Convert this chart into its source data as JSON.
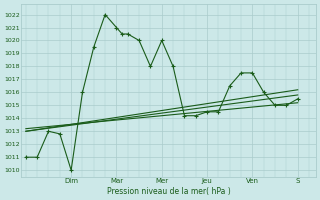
{
  "bg_color": "#cce8e8",
  "grid_color": "#aacccc",
  "line_color": "#1a5c1a",
  "title": "Pression niveau de la mer( hPa )",
  "ylabel_values": [
    1010,
    1011,
    1012,
    1013,
    1014,
    1015,
    1016,
    1017,
    1018,
    1019,
    1020,
    1021,
    1022
  ],
  "ylim": [
    1009.5,
    1022.8
  ],
  "day_labels": [
    "Dim",
    "Mar",
    "Mer",
    "Jeu",
    "Ven",
    "S"
  ],
  "day_positions": [
    2,
    4,
    6,
    8,
    10,
    12
  ],
  "series1_x": [
    0,
    0.5,
    1,
    1.5,
    2,
    2.5,
    3,
    3.5,
    4,
    4.25,
    4.5,
    5,
    5.5,
    6,
    6.5,
    7,
    7.5,
    8,
    8.5,
    9,
    9.5,
    10,
    10.5,
    11,
    11.5,
    12
  ],
  "series1_y": [
    1011,
    1011,
    1013,
    1012.8,
    1010,
    1016,
    1019.5,
    1022,
    1021,
    1020.5,
    1020.5,
    1020,
    1018,
    1020,
    1018,
    1014.2,
    1014.2,
    1014.5,
    1014.5,
    1016.5,
    1017.5,
    1017.5,
    1016,
    1015,
    1015,
    1015.5
  ],
  "trend1_x": [
    0,
    12
  ],
  "trend1_y": [
    1013.0,
    1015.8
  ],
  "trend2_x": [
    0,
    12
  ],
  "trend2_y": [
    1013.0,
    1016.2
  ],
  "trend3_x": [
    0,
    12
  ],
  "trend3_y": [
    1013.2,
    1015.2
  ],
  "xlim": [
    -0.2,
    12.8
  ]
}
